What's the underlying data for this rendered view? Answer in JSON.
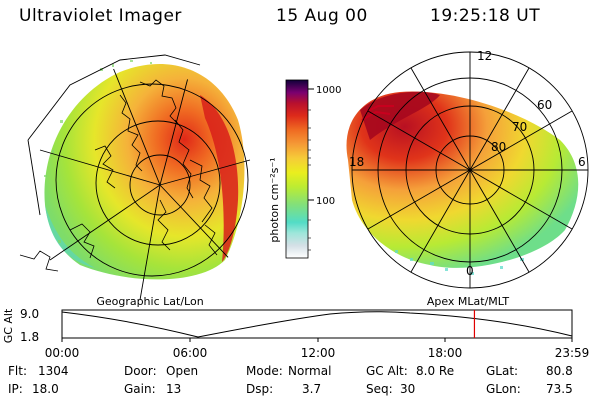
{
  "header": {
    "title": "Ultraviolet Imager",
    "date": "15 Aug 00",
    "time": "19:25:18 UT"
  },
  "left_panel": {
    "label": "Geographic Lat/Lon"
  },
  "right_panel": {
    "label": "Apex MLat/MLT",
    "mlt_labels": [
      "12",
      "6",
      "0",
      "18"
    ],
    "lat_labels": [
      "60",
      "70",
      "80"
    ]
  },
  "colorbar": {
    "unit_label": "photon cm⁻²s⁻¹",
    "ticks": [
      "1000",
      "100"
    ],
    "colors": [
      "#ffffff",
      "#d8e4e8",
      "#aee6dc",
      "#55dcc8",
      "#7fe07a",
      "#b6ec33",
      "#eaf01e",
      "#f5d23a",
      "#f7a83a",
      "#f47b22",
      "#e0341a",
      "#c5102a",
      "#9a0058",
      "#5a0080",
      "#200060"
    ]
  },
  "altitude_plot": {
    "ylabel": "GC Alt",
    "yticks": [
      "9.0",
      "1.8"
    ],
    "xticks": [
      "00:00",
      "06:00",
      "12:00",
      "18:00",
      "23:59"
    ],
    "current_time_fraction": 0.8087
  },
  "info": {
    "flt_label": "Flt:",
    "flt_value": "1304",
    "ip_label": "IP:",
    "ip_value": "18.0",
    "door_label": "Door:",
    "door_value": "Open",
    "gain_label": "Gain:",
    "gain_value": "13",
    "mode_label": "Mode:",
    "mode_value": "Normal",
    "dsp_label": "Dsp:",
    "dsp_value": "3.7",
    "gcalt_label": "GC Alt:",
    "gcalt_value": "8.0 Re",
    "seq_label": "Seq:",
    "seq_value": "30",
    "glat_label": "GLat:",
    "glat_value": "80.8",
    "glon_label": "GLon:",
    "glon_value": "73.5"
  }
}
